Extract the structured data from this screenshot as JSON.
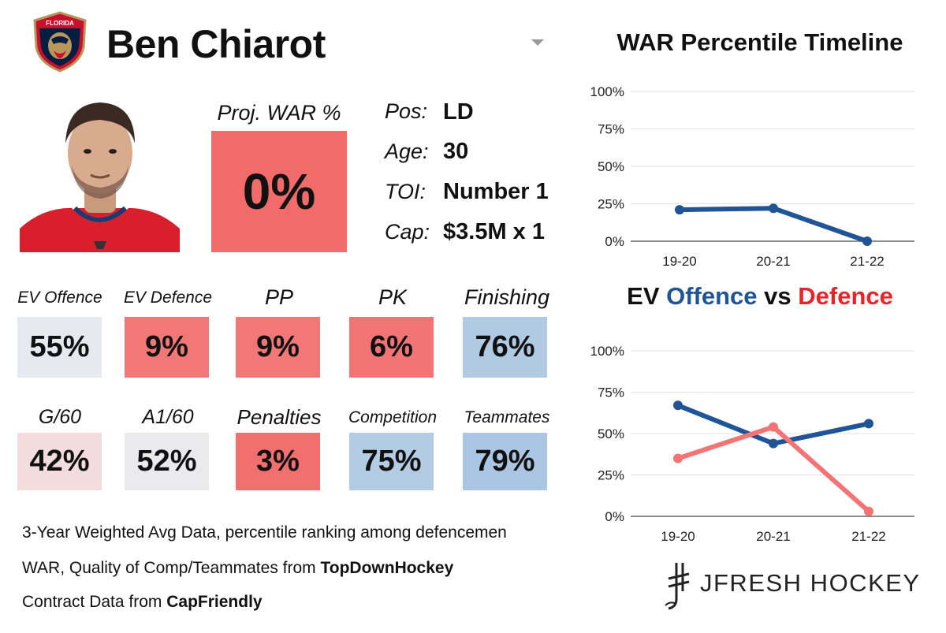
{
  "player": {
    "name": "Ben Chiarot",
    "team_logo_text": "FLORIDA"
  },
  "projection": {
    "label": "Proj. WAR %",
    "value": "0%",
    "color": "#f26b6b"
  },
  "info": [
    {
      "label": "Pos:",
      "value": "LD"
    },
    {
      "label": "Age:",
      "value": "30"
    },
    {
      "label": "TOI:",
      "value": "Number 1"
    },
    {
      "label": "Cap:",
      "value": "$3.5M x 1"
    }
  ],
  "stats_row1": [
    {
      "label": "EV Offence",
      "value": "55%",
      "color": "#e6eaf0"
    },
    {
      "label": "EV Defence",
      "value": "9%",
      "color": "#f27777"
    },
    {
      "label": "PP",
      "value": "9%",
      "color": "#f27777"
    },
    {
      "label": "PK",
      "value": "6%",
      "color": "#f27474"
    },
    {
      "label": "Finishing",
      "value": "76%",
      "color": "#b0cae3"
    }
  ],
  "stats_row2": [
    {
      "label": "G/60",
      "value": "42%",
      "color": "#f3dcdd"
    },
    {
      "label": "A1/60",
      "value": "52%",
      "color": "#eaeaec"
    },
    {
      "label": "Penalties",
      "value": "3%",
      "color": "#f26f6f"
    },
    {
      "label": "Competition",
      "value": "75%",
      "color": "#b3cbe3"
    },
    {
      "label": "Teammates",
      "value": "79%",
      "color": "#abc6e2"
    }
  ],
  "footer": {
    "line1": "3-Year Weighted Avg Data, percentile ranking among defencemen",
    "line2_prefix": "WAR, Quality of Comp/Teammates from ",
    "line2_source": "TopDownHockey",
    "line3_prefix": "Contract Data from ",
    "line3_source": "CapFriendly"
  },
  "brand": "JFRESH HOCKEY",
  "colors": {
    "offence": "#1f5496",
    "defence": "#f27474",
    "defence_title": "#e8242a"
  },
  "chart_data": [
    {
      "type": "line",
      "title": "WAR Percentile Timeline",
      "categories": [
        "19-20",
        "20-21",
        "21-22"
      ],
      "series": [
        {
          "values": [
            21,
            22,
            0
          ],
          "color": "#1f5496"
        }
      ],
      "ylim": [
        0,
        100
      ],
      "yticks": [
        "0%",
        "25%",
        "50%",
        "75%",
        "100%"
      ],
      "grid": true
    },
    {
      "type": "line",
      "title_parts": [
        "EV ",
        "Offence",
        " vs ",
        "Defence"
      ],
      "categories": [
        "19-20",
        "20-21",
        "21-22"
      ],
      "series": [
        {
          "name": "Offence",
          "values": [
            67,
            44,
            56
          ],
          "color": "#1f5496"
        },
        {
          "name": "Defence",
          "values": [
            35,
            54,
            3
          ],
          "color": "#f27474"
        }
      ],
      "ylim": [
        0,
        100
      ],
      "yticks": [
        "0%",
        "25%",
        "50%",
        "75%",
        "100%"
      ],
      "grid": true
    }
  ]
}
